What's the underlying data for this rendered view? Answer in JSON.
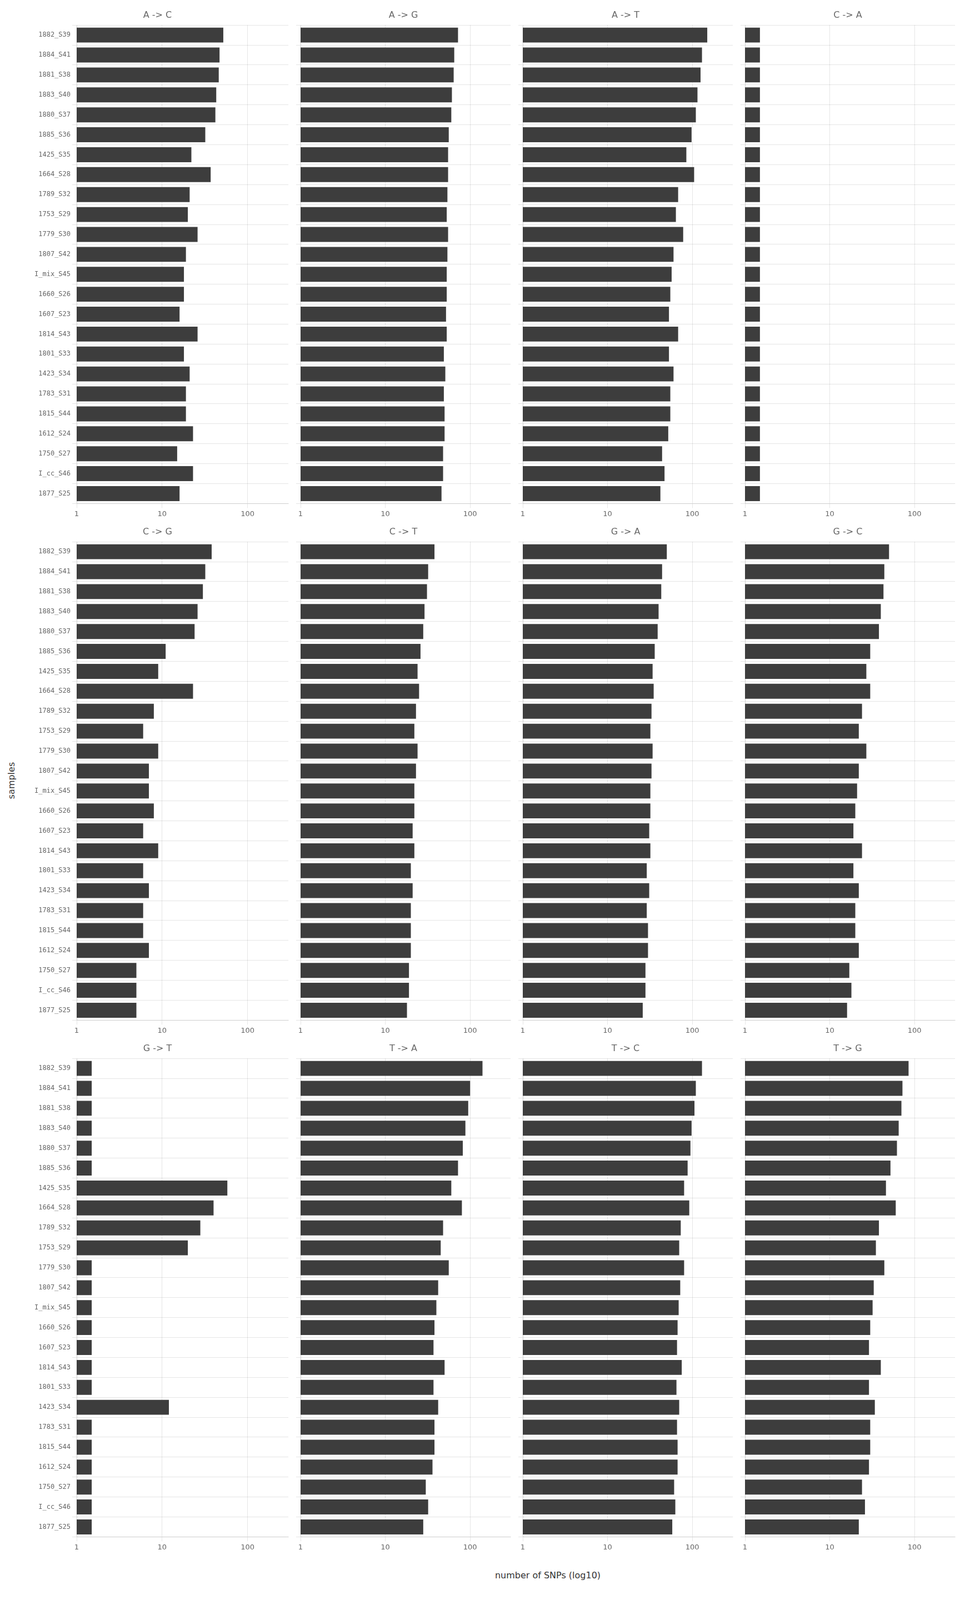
{
  "xlabel": "number of SNPs (log10)",
  "ylabel": "samples",
  "chart_data": [
    {
      "type": "bar",
      "title": "A -> C",
      "orientation": "horizontal",
      "log": "x",
      "grid": true,
      "color": "#3d3d3d",
      "categories": [
        "1882_S39",
        "1884_S41",
        "1881_S38",
        "1883_S40",
        "1880_S37",
        "1885_S36",
        "1425_S35",
        "1664_S28",
        "1789_S32",
        "1753_S29",
        "1779_S30",
        "1807_S42",
        "I_mix_S45",
        "1660_S26",
        "1607_S23",
        "1814_S43",
        "1801_S33",
        "1423_S34",
        "1783_S31",
        "1815_S44",
        "1612_S24",
        "1750_S27",
        "I_cc_S46",
        "1877_S25"
      ],
      "values": [
        52,
        47,
        46,
        43,
        42,
        32,
        22,
        37,
        21,
        20,
        26,
        19,
        18,
        18,
        16,
        26,
        18,
        21,
        19,
        19,
        23,
        15,
        23,
        16
      ],
      "xlim": [
        1,
        300
      ],
      "xticks": [
        1,
        10,
        100
      ]
    },
    {
      "type": "bar",
      "title": "A -> G",
      "orientation": "horizontal",
      "log": "x",
      "grid": true,
      "color": "#3d3d3d",
      "tick_labels": "x",
      "categories": [
        "1882_S39",
        "1884_S41",
        "1881_S38",
        "1883_S40",
        "1880_S37",
        "1885_S36",
        "1425_S35",
        "1664_S28",
        "1789_S32",
        "1753_S29",
        "1779_S30",
        "1807_S42",
        "I_mix_S45",
        "1660_S26",
        "1607_S23",
        "1814_S43",
        "1801_S33",
        "1423_S34",
        "1783_S31",
        "1815_S44",
        "1612_S24",
        "1750_S27",
        "I_cc_S46",
        "1877_S25"
      ],
      "values": [
        72,
        65,
        64,
        61,
        60,
        56,
        55,
        55,
        54,
        53,
        55,
        54,
        53,
        53,
        52,
        53,
        49,
        51,
        49,
        50,
        50,
        48,
        48,
        46
      ],
      "xlim": [
        1,
        300
      ],
      "xticks": [
        1,
        10,
        100
      ]
    },
    {
      "type": "bar",
      "title": "A -> T",
      "orientation": "horizontal",
      "log": "x",
      "grid": true,
      "color": "#3d3d3d",
      "tick_labels": "x",
      "categories": [
        "1882_S39",
        "1884_S41",
        "1881_S38",
        "1883_S40",
        "1880_S37",
        "1885_S36",
        "1425_S35",
        "1664_S28",
        "1789_S32",
        "1753_S29",
        "1779_S30",
        "1807_S42",
        "I_mix_S45",
        "1660_S26",
        "1607_S23",
        "1814_S43",
        "1801_S33",
        "1423_S34",
        "1783_S31",
        "1815_S44",
        "1612_S24",
        "1750_S27",
        "I_cc_S46",
        "1877_S25"
      ],
      "values": [
        150,
        130,
        125,
        115,
        110,
        98,
        85,
        105,
        68,
        64,
        78,
        60,
        57,
        55,
        53,
        68,
        53,
        60,
        55,
        55,
        52,
        44,
        47,
        42
      ],
      "xlim": [
        1,
        300
      ],
      "xticks": [
        1,
        10,
        100
      ]
    },
    {
      "type": "bar",
      "title": "C -> A",
      "orientation": "horizontal",
      "log": "x",
      "grid": true,
      "color": "#3d3d3d",
      "tick_labels": "x",
      "categories": [
        "1882_S39",
        "1884_S41",
        "1881_S38",
        "1883_S40",
        "1880_S37",
        "1885_S36",
        "1425_S35",
        "1664_S28",
        "1789_S32",
        "1753_S29",
        "1779_S30",
        "1807_S42",
        "I_mix_S45",
        "1660_S26",
        "1607_S23",
        "1814_S43",
        "1801_S33",
        "1423_S34",
        "1783_S31",
        "1815_S44",
        "1612_S24",
        "1750_S27",
        "I_cc_S46",
        "1877_S25"
      ],
      "values": [
        1.5,
        1.5,
        1.5,
        1.5,
        1.5,
        1.5,
        1.5,
        1.5,
        1.5,
        1.5,
        1.5,
        1.5,
        1.5,
        1.5,
        1.5,
        1.5,
        1.5,
        1.5,
        1.5,
        1.5,
        1.5,
        1.5,
        1.5,
        1.5
      ],
      "xlim": [
        1,
        300
      ],
      "xticks": [
        1,
        10,
        100
      ]
    },
    {
      "type": "bar",
      "title": "C -> G",
      "orientation": "horizontal",
      "log": "x",
      "grid": true,
      "color": "#3d3d3d",
      "categories": [
        "1882_S39",
        "1884_S41",
        "1881_S38",
        "1883_S40",
        "1880_S37",
        "1885_S36",
        "1425_S35",
        "1664_S28",
        "1789_S32",
        "1753_S29",
        "1779_S30",
        "1807_S42",
        "I_mix_S45",
        "1660_S26",
        "1607_S23",
        "1814_S43",
        "1801_S33",
        "1423_S34",
        "1783_S31",
        "1815_S44",
        "1612_S24",
        "1750_S27",
        "I_cc_S46",
        "1877_S25"
      ],
      "values": [
        38,
        32,
        30,
        26,
        24,
        11,
        9,
        23,
        8,
        6,
        9,
        7,
        7,
        8,
        6,
        9,
        6,
        7,
        6,
        6,
        7,
        5,
        5,
        5
      ],
      "xlim": [
        1,
        300
      ],
      "xticks": [
        1,
        10,
        100
      ]
    },
    {
      "type": "bar",
      "title": "C -> T",
      "orientation": "horizontal",
      "log": "x",
      "grid": true,
      "color": "#3d3d3d",
      "tick_labels": "x",
      "categories": [
        "1882_S39",
        "1884_S41",
        "1881_S38",
        "1883_S40",
        "1880_S37",
        "1885_S36",
        "1425_S35",
        "1664_S28",
        "1789_S32",
        "1753_S29",
        "1779_S30",
        "1807_S42",
        "I_mix_S45",
        "1660_S26",
        "1607_S23",
        "1814_S43",
        "1801_S33",
        "1423_S34",
        "1783_S31",
        "1815_S44",
        "1612_S24",
        "1750_S27",
        "I_cc_S46",
        "1877_S25"
      ],
      "values": [
        38,
        32,
        31,
        29,
        28,
        26,
        24,
        25,
        23,
        22,
        24,
        23,
        22,
        22,
        21,
        22,
        20,
        21,
        20,
        20,
        20,
        19,
        19,
        18
      ],
      "xlim": [
        1,
        300
      ],
      "xticks": [
        1,
        10,
        100
      ]
    },
    {
      "type": "bar",
      "title": "G -> A",
      "orientation": "horizontal",
      "log": "x",
      "grid": true,
      "color": "#3d3d3d",
      "tick_labels": "x",
      "categories": [
        "1882_S39",
        "1884_S41",
        "1881_S38",
        "1883_S40",
        "1880_S37",
        "1885_S36",
        "1425_S35",
        "1664_S28",
        "1789_S32",
        "1753_S29",
        "1779_S30",
        "1807_S42",
        "I_mix_S45",
        "1660_S26",
        "1607_S23",
        "1814_S43",
        "1801_S33",
        "1423_S34",
        "1783_S31",
        "1815_S44",
        "1612_S24",
        "1750_S27",
        "I_cc_S46",
        "1877_S25"
      ],
      "values": [
        50,
        44,
        43,
        40,
        39,
        36,
        34,
        35,
        33,
        32,
        34,
        33,
        32,
        32,
        31,
        32,
        29,
        31,
        29,
        30,
        30,
        28,
        28,
        26
      ],
      "xlim": [
        1,
        300
      ],
      "xticks": [
        1,
        10,
        100
      ]
    },
    {
      "type": "bar",
      "title": "G -> C",
      "orientation": "horizontal",
      "log": "x",
      "grid": true,
      "color": "#3d3d3d",
      "tick_labels": "x",
      "categories": [
        "1882_S39",
        "1884_S41",
        "1881_S38",
        "1883_S40",
        "1880_S37",
        "1885_S36",
        "1425_S35",
        "1664_S28",
        "1789_S32",
        "1753_S29",
        "1779_S30",
        "1807_S42",
        "I_mix_S45",
        "1660_S26",
        "1607_S23",
        "1814_S43",
        "1801_S33",
        "1423_S34",
        "1783_S31",
        "1815_S44",
        "1612_S24",
        "1750_S27",
        "I_cc_S46",
        "1877_S25"
      ],
      "values": [
        50,
        44,
        43,
        40,
        38,
        30,
        27,
        30,
        24,
        22,
        27,
        22,
        21,
        20,
        19,
        24,
        19,
        22,
        20,
        20,
        22,
        17,
        18,
        16
      ],
      "xlim": [
        1,
        300
      ],
      "xticks": [
        1,
        10,
        100
      ]
    },
    {
      "type": "bar",
      "title": "G -> T",
      "orientation": "horizontal",
      "log": "x",
      "grid": true,
      "color": "#3d3d3d",
      "categories": [
        "1882_S39",
        "1884_S41",
        "1881_S38",
        "1883_S40",
        "1880_S37",
        "1885_S36",
        "1425_S35",
        "1664_S28",
        "1789_S32",
        "1753_S29",
        "1779_S30",
        "1807_S42",
        "I_mix_S45",
        "1660_S26",
        "1607_S23",
        "1814_S43",
        "1801_S33",
        "1423_S34",
        "1783_S31",
        "1815_S44",
        "1612_S24",
        "1750_S27",
        "I_cc_S46",
        "1877_S25"
      ],
      "values": [
        1.5,
        1.5,
        1.5,
        1.5,
        1.5,
        1.5,
        58,
        40,
        28,
        20,
        1.5,
        1.5,
        1.5,
        1.5,
        1.5,
        1.5,
        1.5,
        12,
        1.5,
        1.5,
        1.5,
        1.5,
        1.5,
        1.5
      ],
      "xlim": [
        1,
        300
      ],
      "xticks": [
        1,
        10,
        100
      ]
    },
    {
      "type": "bar",
      "title": "T -> A",
      "orientation": "horizontal",
      "log": "x",
      "grid": true,
      "color": "#3d3d3d",
      "tick_labels": "x",
      "categories": [
        "1882_S39",
        "1884_S41",
        "1881_S38",
        "1883_S40",
        "1880_S37",
        "1885_S36",
        "1425_S35",
        "1664_S28",
        "1789_S32",
        "1753_S29",
        "1779_S30",
        "1807_S42",
        "I_mix_S45",
        "1660_S26",
        "1607_S23",
        "1814_S43",
        "1801_S33",
        "1423_S34",
        "1783_S31",
        "1815_S44",
        "1612_S24",
        "1750_S27",
        "I_cc_S46",
        "1877_S25"
      ],
      "values": [
        140,
        100,
        95,
        88,
        82,
        72,
        60,
        80,
        48,
        45,
        56,
        42,
        40,
        38,
        37,
        50,
        37,
        42,
        38,
        38,
        36,
        30,
        32,
        28
      ],
      "xlim": [
        1,
        300
      ],
      "xticks": [
        1,
        10,
        100
      ]
    },
    {
      "type": "bar",
      "title": "T -> C",
      "orientation": "horizontal",
      "log": "x",
      "grid": true,
      "color": "#3d3d3d",
      "tick_labels": "x",
      "categories": [
        "1882_S39",
        "1884_S41",
        "1881_S38",
        "1883_S40",
        "1880_S37",
        "1885_S36",
        "1425_S35",
        "1664_S28",
        "1789_S32",
        "1753_S29",
        "1779_S30",
        "1807_S42",
        "I_mix_S45",
        "1660_S26",
        "1607_S23",
        "1814_S43",
        "1801_S33",
        "1423_S34",
        "1783_S31",
        "1815_S44",
        "1612_S24",
        "1750_S27",
        "I_cc_S46",
        "1877_S25"
      ],
      "values": [
        130,
        110,
        106,
        98,
        95,
        88,
        80,
        92,
        73,
        70,
        80,
        72,
        69,
        67,
        66,
        75,
        65,
        70,
        66,
        67,
        67,
        61,
        63,
        58
      ],
      "xlim": [
        1,
        300
      ],
      "xticks": [
        1,
        10,
        100
      ]
    },
    {
      "type": "bar",
      "title": "T -> G",
      "orientation": "horizontal",
      "log": "x",
      "grid": true,
      "color": "#3d3d3d",
      "tick_labels": "x",
      "categories": [
        "1882_S39",
        "1884_S41",
        "1881_S38",
        "1883_S40",
        "1880_S37",
        "1885_S36",
        "1425_S35",
        "1664_S28",
        "1789_S32",
        "1753_S29",
        "1779_S30",
        "1807_S42",
        "I_mix_S45",
        "1660_S26",
        "1607_S23",
        "1814_S43",
        "1801_S33",
        "1423_S34",
        "1783_S31",
        "1815_S44",
        "1612_S24",
        "1750_S27",
        "I_cc_S46",
        "1877_S25"
      ],
      "values": [
        85,
        72,
        70,
        65,
        62,
        52,
        46,
        60,
        38,
        35,
        44,
        33,
        32,
        30,
        29,
        40,
        29,
        34,
        30,
        30,
        29,
        24,
        26,
        22
      ],
      "xlim": [
        1,
        300
      ],
      "xticks": [
        1,
        10,
        100
      ]
    }
  ]
}
